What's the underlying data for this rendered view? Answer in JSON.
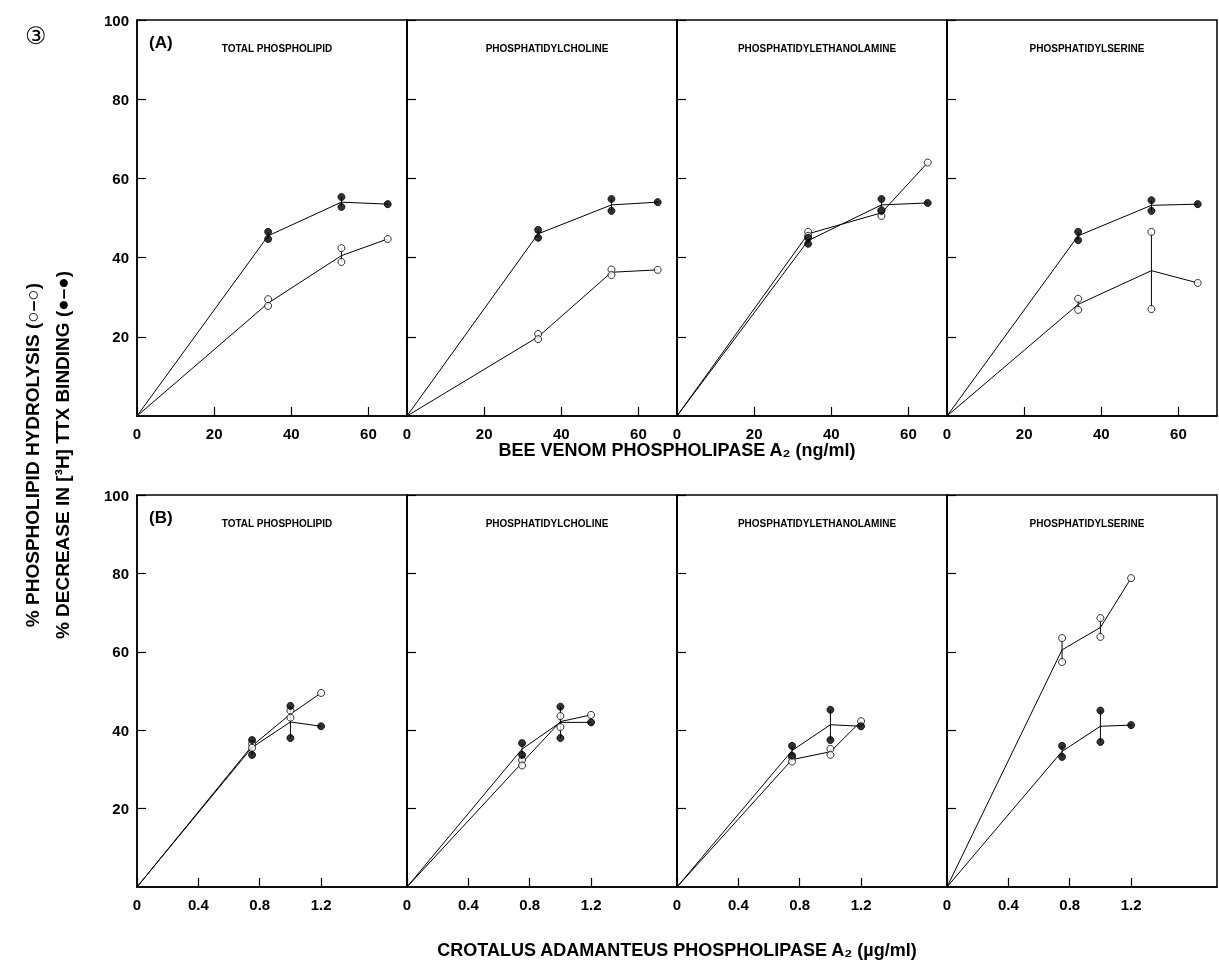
{
  "chart_data": [
    {
      "type": "line",
      "title": "TOTAL PHOSPHOLIPID",
      "xlabel": "BEE VENOM PHOSPHOLIPASE A₂ (ng/ml)",
      "ylabel": "% PHOSPHOLIPID HYDROLYSIS (○–○)\n% DECREASE IN [³H] TTX BINDING (●–●)",
      "annotations": [
        "③",
        "(A)"
      ],
      "xlim": [
        0,
        70
      ],
      "xticks": [
        0,
        20,
        40,
        60
      ],
      "ylim": [
        0,
        100
      ],
      "yticks": [
        20,
        40,
        60,
        80,
        100
      ],
      "series": [
        {
          "type": "line",
          "color": "#000000",
          "marker": "none",
          "x": [
            0,
            34,
            53,
            65
          ],
          "values": [
            0,
            28.5,
            40.5,
            44.7
          ],
          "errors": [
            null,
            [
              27.8,
              29.5
            ],
            [
              38.9,
              42.4
            ],
            null
          ]
        },
        {
          "type": "line",
          "color": "#000000",
          "marker": "none",
          "x": [
            0,
            34,
            53,
            65
          ],
          "values": [
            0,
            45.5,
            54,
            53.5
          ],
          "errors": [
            null,
            [
              44.7,
              46.5
            ],
            [
              52.8,
              55.3
            ],
            null
          ]
        },
        {
          "type": "scatter",
          "color": "#000000",
          "marker": "circle",
          "x": [
            34,
            34,
            53,
            53,
            65
          ],
          "values": [
            29.5,
            27.8,
            42.4,
            38.9,
            44.7
          ]
        },
        {
          "type": "scatter",
          "color": "#000000",
          "marker": "circle",
          "x": [
            34,
            34,
            53,
            53,
            65
          ],
          "values": [
            46.5,
            44.7,
            55.3,
            52.8,
            53.5
          ]
        }
      ]
    },
    {
      "type": "line",
      "title": "PHOSPHATIDYLCHOLINE",
      "tick_labels": "x",
      "xlim": [
        0,
        70
      ],
      "xticks": [
        0,
        20,
        40,
        60
      ],
      "ylim": [
        0,
        100
      ],
      "yticks": [
        20,
        40,
        60,
        80,
        100
      ],
      "series": [
        {
          "type": "line",
          "color": "#000000",
          "marker": "none",
          "x": [
            0,
            34,
            53,
            65
          ],
          "values": [
            0,
            20,
            36.3,
            36.9
          ],
          "errors": [
            null,
            [
              19.4,
              20.7
            ],
            [
              35.6,
              37
            ],
            null
          ]
        },
        {
          "type": "line",
          "color": "#000000",
          "marker": "none",
          "x": [
            0,
            34,
            53,
            65
          ],
          "values": [
            0,
            46,
            53.3,
            54
          ],
          "errors": [
            null,
            [
              45,
              47
            ],
            [
              51.8,
              54.8
            ],
            null
          ]
        },
        {
          "type": "scatter",
          "color": "#000000",
          "marker": "circle",
          "x": [
            34,
            34,
            53,
            53,
            65
          ],
          "values": [
            20.7,
            19.4,
            37,
            35.6,
            36.9
          ]
        },
        {
          "type": "scatter",
          "color": "#000000",
          "marker": "circle",
          "x": [
            34,
            34,
            53,
            53,
            65
          ],
          "values": [
            47,
            45,
            54.8,
            51.8,
            54
          ]
        }
      ]
    },
    {
      "type": "line",
      "title": "PHOSPHATIDYLETHANOLAMINE",
      "tick_labels": "x",
      "xlim": [
        0,
        70
      ],
      "xticks": [
        0,
        20,
        40,
        60
      ],
      "ylim": [
        0,
        100
      ],
      "yticks": [
        20,
        40,
        60,
        80,
        100
      ],
      "series": [
        {
          "type": "line",
          "color": "#000000",
          "marker": "none",
          "x": [
            0,
            34,
            53,
            65
          ],
          "values": [
            0,
            46,
            51.3,
            64
          ],
          "errors": [
            null,
            [
              45.5,
              46.5
            ],
            [
              50.5,
              52
            ],
            null
          ]
        },
        {
          "type": "line",
          "color": "#000000",
          "marker": "none",
          "x": [
            0,
            34,
            53,
            65
          ],
          "values": [
            0,
            44.3,
            53.3,
            53.8
          ],
          "errors": [
            null,
            [
              43.5,
              45
            ],
            [
              51.8,
              54.8
            ],
            null
          ]
        },
        {
          "type": "scatter",
          "color": "#000000",
          "marker": "circle",
          "x": [
            34,
            34,
            53,
            53,
            65
          ],
          "values": [
            46.5,
            45.5,
            52,
            50.5,
            64
          ]
        },
        {
          "type": "scatter",
          "color": "#000000",
          "marker": "circle",
          "x": [
            34,
            34,
            53,
            53,
            65
          ],
          "values": [
            45,
            43.5,
            54.8,
            51.8,
            53.8
          ]
        }
      ]
    },
    {
      "type": "line",
      "title": "PHOSPHATIDYLSERINE",
      "tick_labels": "x",
      "xlim": [
        0,
        70
      ],
      "xticks": [
        0,
        20,
        40,
        60
      ],
      "ylim": [
        0,
        100
      ],
      "yticks": [
        20,
        40,
        60,
        80,
        100
      ],
      "series": [
        {
          "type": "line",
          "color": "#000000",
          "marker": "none",
          "x": [
            0,
            34,
            53,
            65
          ],
          "values": [
            0,
            28.2,
            36.7,
            33.6
          ],
          "errors": [
            null,
            [
              26.8,
              29.6
            ],
            [
              27,
              46.5
            ],
            null
          ]
        },
        {
          "type": "line",
          "color": "#000000",
          "marker": "none",
          "x": [
            0,
            34,
            53,
            65
          ],
          "values": [
            0,
            45.5,
            53.2,
            53.5
          ],
          "errors": [
            null,
            [
              44.4,
              46.5
            ],
            [
              51.8,
              54.5
            ],
            null
          ]
        },
        {
          "type": "scatter",
          "color": "#000000",
          "marker": "circle",
          "x": [
            34,
            34,
            53,
            53,
            65
          ],
          "values": [
            29.6,
            26.8,
            46.5,
            27,
            33.6
          ]
        },
        {
          "type": "scatter",
          "color": "#000000",
          "marker": "circle",
          "x": [
            34,
            34,
            53,
            53,
            65
          ],
          "values": [
            46.5,
            44.4,
            54.5,
            51.8,
            53.5
          ]
        }
      ]
    },
    {
      "type": "line",
      "title": "TOTAL PHOSPHOLIPID",
      "xlabel": "CROTALUS ADAMANTEUS PHOSPHOLIPASE A₂ (µg/ml)",
      "annotations": [
        "(B)"
      ],
      "xlim": [
        0,
        1.76
      ],
      "xticks": [
        0,
        0.4,
        0.8,
        1.2
      ],
      "ylim": [
        0,
        100
      ],
      "yticks": [
        20,
        40,
        60,
        80,
        100
      ],
      "series": [
        {
          "type": "line",
          "color": "#000000",
          "marker": "none",
          "x": [
            0,
            0.75,
            1,
            1.2
          ],
          "values": [
            0,
            36,
            44.1,
            49.5
          ],
          "errors": [
            null,
            [
              35.5,
              36.5
            ],
            [
              43.2,
              45
            ],
            null
          ]
        },
        {
          "type": "line",
          "color": "#000000",
          "marker": "none",
          "x": [
            0,
            0.75,
            1,
            1.2
          ],
          "values": [
            0,
            35.6,
            42.1,
            41
          ],
          "errors": [
            null,
            [
              33.7,
              37.5
            ],
            [
              38,
              46.2
            ],
            null
          ]
        },
        {
          "type": "scatter",
          "color": "#000000",
          "marker": "circle",
          "x": [
            0.75,
            0.75,
            1,
            1,
            1.2
          ],
          "values": [
            36.5,
            35.5,
            45,
            43.2,
            49.5
          ]
        },
        {
          "type": "scatter",
          "color": "#000000",
          "marker": "circle",
          "x": [
            0.75,
            0.75,
            1,
            1,
            1.2
          ],
          "values": [
            37.5,
            33.7,
            46.2,
            38,
            41
          ]
        }
      ]
    },
    {
      "type": "line",
      "title": "PHOSPHATIDYLCHOLINE",
      "tick_labels": "x",
      "xlim": [
        0,
        1.76
      ],
      "xticks": [
        0,
        0.4,
        0.8,
        1.2
      ],
      "ylim": [
        0,
        100
      ],
      "yticks": [
        20,
        40,
        60,
        80,
        100
      ],
      "series": [
        {
          "type": "line",
          "color": "#000000",
          "marker": "none",
          "x": [
            0,
            0.75,
            1,
            1.2
          ],
          "values": [
            0,
            31.7,
            42.2,
            43.9
          ],
          "errors": [
            null,
            [
              31,
              32.4
            ],
            [
              40.8,
              43.6
            ],
            null
          ]
        },
        {
          "type": "line",
          "color": "#000000",
          "marker": "none",
          "x": [
            0,
            0.75,
            1,
            1.2
          ],
          "values": [
            0,
            35.2,
            42,
            42
          ],
          "errors": [
            null,
            [
              33.7,
              36.7
            ],
            [
              38,
              46
            ],
            null
          ]
        },
        {
          "type": "scatter",
          "color": "#000000",
          "marker": "circle",
          "x": [
            0.75,
            0.75,
            1,
            1,
            1.2
          ],
          "values": [
            32.4,
            31,
            43.6,
            40.8,
            43.9
          ]
        },
        {
          "type": "scatter",
          "color": "#000000",
          "marker": "circle",
          "x": [
            0.75,
            0.75,
            1,
            1,
            1.2
          ],
          "values": [
            36.7,
            33.7,
            46,
            38,
            42
          ]
        }
      ]
    },
    {
      "type": "line",
      "title": "PHOSPHATIDYLETHANOLAMINE",
      "tick_labels": "x",
      "xlim": [
        0,
        1.76
      ],
      "xticks": [
        0,
        0.4,
        0.8,
        1.2
      ],
      "ylim": [
        0,
        100
      ],
      "yticks": [
        20,
        40,
        60,
        80,
        100
      ],
      "series": [
        {
          "type": "line",
          "color": "#000000",
          "marker": "none",
          "x": [
            0,
            0.75,
            1,
            1.2
          ],
          "values": [
            0,
            32.5,
            34.5,
            42.3
          ],
          "errors": [
            null,
            [
              32,
              33
            ],
            [
              33.7,
              35.2
            ],
            null
          ]
        },
        {
          "type": "line",
          "color": "#000000",
          "marker": "none",
          "x": [
            0,
            0.75,
            1,
            1.2
          ],
          "values": [
            0,
            34.8,
            41.4,
            41
          ],
          "errors": [
            null,
            [
              33.5,
              36
            ],
            [
              37.5,
              45.2
            ],
            null
          ]
        },
        {
          "type": "scatter",
          "color": "#000000",
          "marker": "circle",
          "x": [
            0.75,
            0.75,
            1,
            1,
            1.2
          ],
          "values": [
            33,
            32,
            35.2,
            33.7,
            42.3
          ]
        },
        {
          "type": "scatter",
          "color": "#000000",
          "marker": "circle",
          "x": [
            0.75,
            0.75,
            1,
            1,
            1.2
          ],
          "values": [
            36,
            33.5,
            45.2,
            37.5,
            41
          ]
        }
      ]
    },
    {
      "type": "line",
      "title": "PHOSPHATIDYLSERINE",
      "tick_labels": "x",
      "xlim": [
        0,
        1.76
      ],
      "xticks": [
        0,
        0.4,
        0.8,
        1.2
      ],
      "ylim": [
        0,
        100
      ],
      "yticks": [
        20,
        40,
        60,
        80,
        100
      ],
      "series": [
        {
          "type": "line",
          "color": "#000000",
          "marker": "none",
          "x": [
            0,
            0.75,
            1,
            1.2
          ],
          "values": [
            0,
            60.5,
            66.2,
            78.8
          ],
          "errors": [
            null,
            [
              57.4,
              63.5
            ],
            [
              63.8,
              68.6
            ],
            null
          ]
        },
        {
          "type": "line",
          "color": "#000000",
          "marker": "none",
          "x": [
            0,
            0.75,
            1,
            1.2
          ],
          "values": [
            0,
            34.6,
            41,
            41.3
          ],
          "errors": [
            null,
            [
              33.2,
              36
            ],
            [
              37,
              45
            ],
            null
          ]
        },
        {
          "type": "scatter",
          "color": "#000000",
          "marker": "circle",
          "x": [
            0.75,
            0.75,
            1,
            1,
            1.2
          ],
          "values": [
            63.5,
            57.4,
            68.6,
            63.8,
            78.8
          ]
        },
        {
          "type": "scatter",
          "color": "#000000",
          "marker": "circle",
          "x": [
            0.75,
            0.75,
            1,
            1,
            1.2
          ],
          "values": [
            36,
            33.2,
            45,
            37,
            41.3
          ]
        }
      ]
    }
  ]
}
